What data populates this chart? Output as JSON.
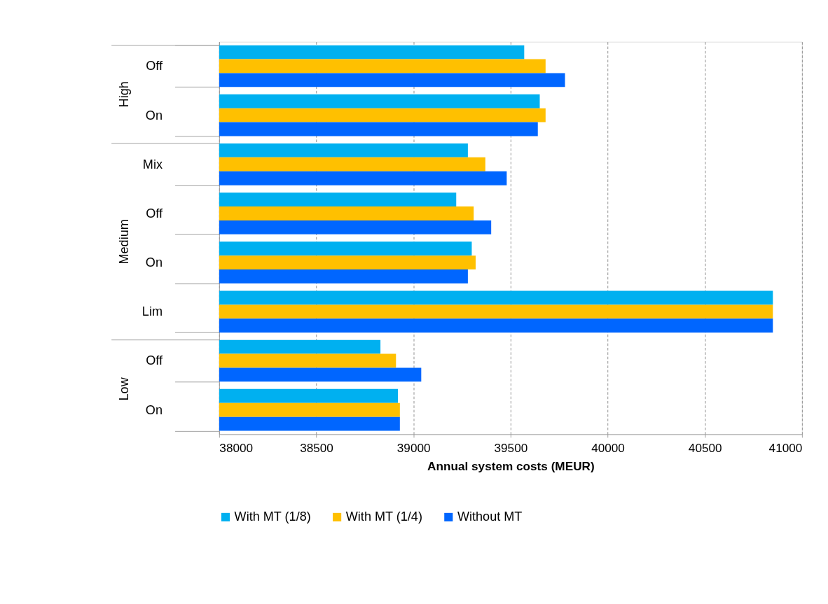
{
  "chart_data": {
    "type": "bar",
    "orientation": "horizontal",
    "categories": [
      "Off",
      "On",
      "Mix",
      "Off",
      "On",
      "Lim",
      "Off",
      "On"
    ],
    "series": [
      {
        "name": "With MT (1/8)",
        "color": "#00b0f0",
        "values": [
          39570,
          39650,
          39280,
          39220,
          39300,
          40850,
          38830,
          38920
        ]
      },
      {
        "name": "With MT (1/4)",
        "color": "#ffc000",
        "values": [
          39680,
          39680,
          39370,
          39310,
          39320,
          40850,
          38910,
          38930
        ]
      },
      {
        "name": "Without MT",
        "color": "#0066ff",
        "values": [
          39780,
          39640,
          39480,
          39400,
          39280,
          40850,
          39040,
          38930
        ]
      }
    ],
    "annotations": [
      "High",
      "Medium",
      "Low"
    ],
    "xlabel": "Annual system costs (MEUR)",
    "xlim": [
      38000,
      41000
    ],
    "xticks": [
      38000,
      38500,
      39000,
      39500,
      40000,
      40500,
      41000
    ],
    "grid": "x",
    "line_style": "dashed",
    "legend": "bottom"
  }
}
